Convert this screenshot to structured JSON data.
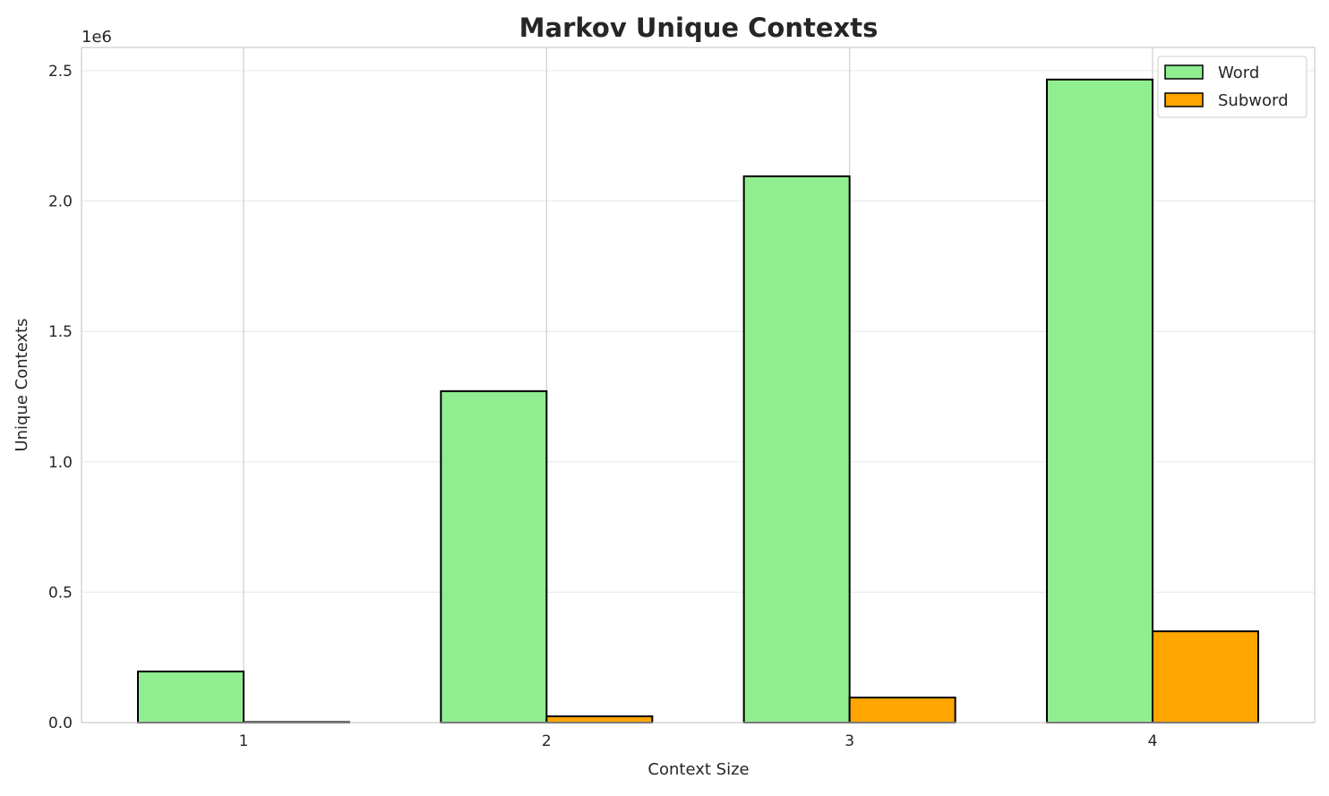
{
  "chart_data": {
    "type": "bar",
    "title": "Markov Unique Contexts",
    "xlabel": "Context Size",
    "ylabel": "Unique Contexts",
    "y_scale_label": "1e6",
    "categories": [
      "1",
      "2",
      "3",
      "4"
    ],
    "series": [
      {
        "name": "Word",
        "color": "#90ee90",
        "values": [
          196000,
          1271000,
          2095000,
          2466000
        ]
      },
      {
        "name": "Subword",
        "color": "#ffa500",
        "values": [
          2000,
          24000,
          96000,
          350000
        ]
      }
    ],
    "ylim": [
      0,
      2589000
    ],
    "yticks": [
      0,
      500000,
      1000000,
      1500000,
      2000000,
      2500000
    ],
    "ytick_labels": [
      "0.0",
      "0.5",
      "1.0",
      "1.5",
      "2.0",
      "2.5"
    ],
    "grid": true,
    "legend_position": "top-right"
  }
}
